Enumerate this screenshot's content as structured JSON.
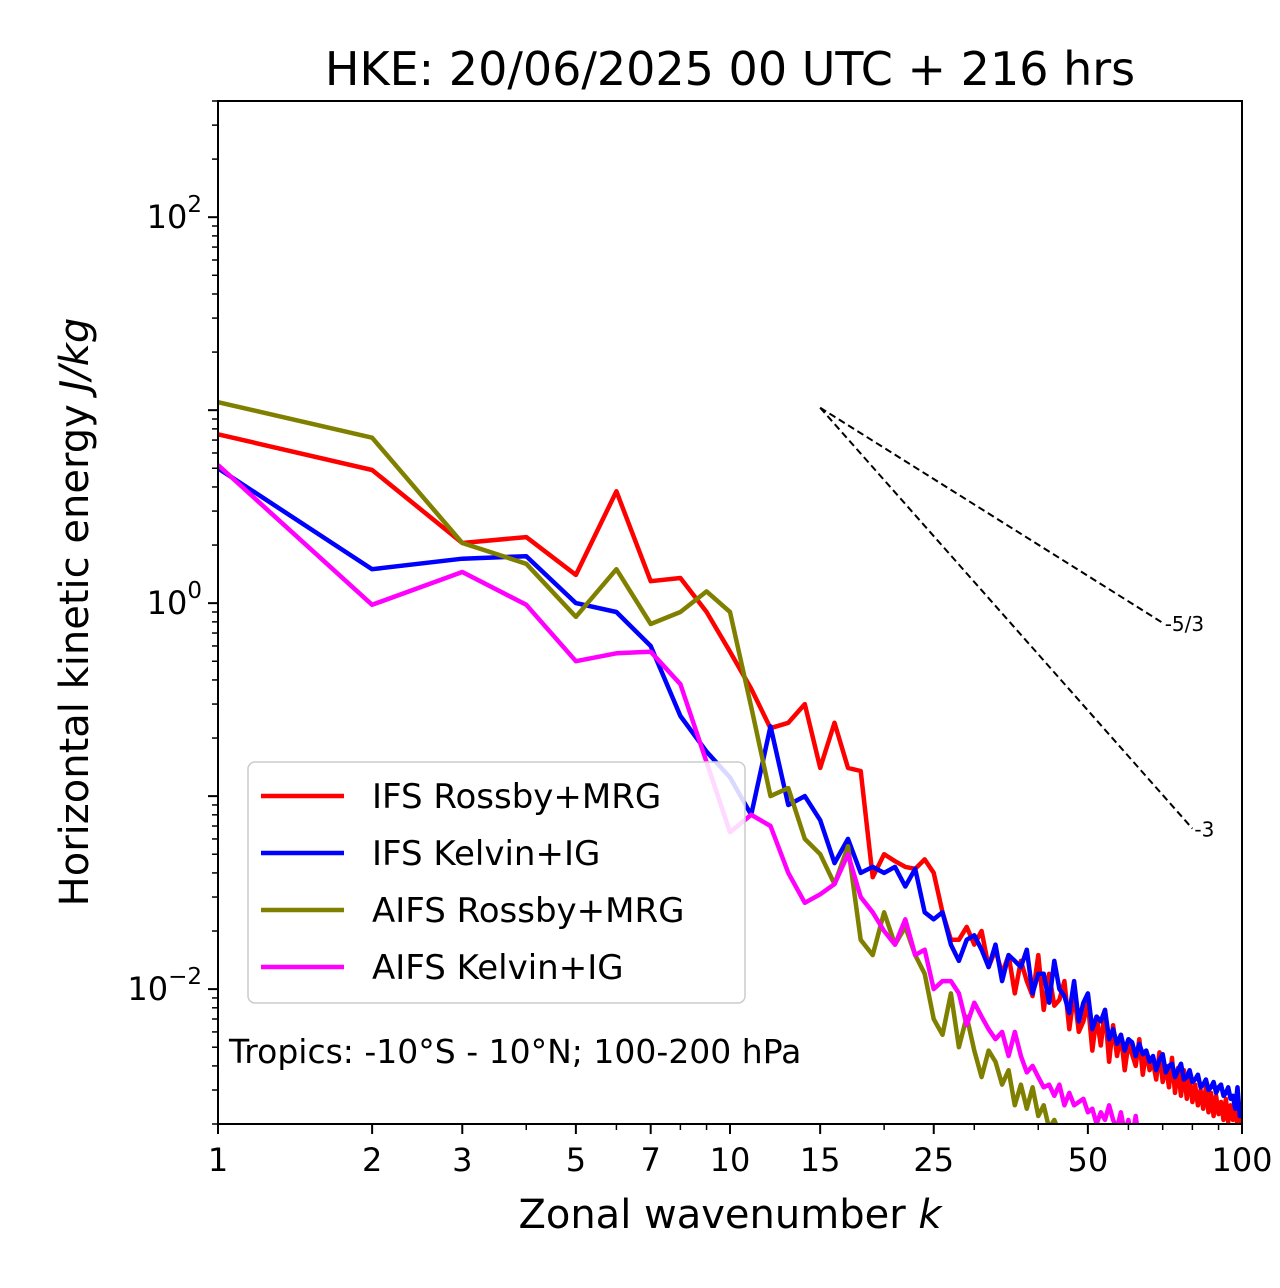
{
  "chart_data": {
    "type": "line",
    "title": "HKE: 20/06/2025 00 UTC + 216 hrs",
    "xlabel": "Zonal wavenumber",
    "xlabel_var": "k",
    "ylabel": "Horizontal kinetic energy",
    "ylabel_units": "J/kg",
    "xscale": "log",
    "yscale": "log",
    "xlim": [
      1,
      100
    ],
    "ylim": [
      0.002,
      400
    ],
    "grid": false,
    "legend_position": "lower-left",
    "x_ticks": [
      {
        "value": 1,
        "label": "1"
      },
      {
        "value": 2,
        "label": "2"
      },
      {
        "value": 3,
        "label": "3"
      },
      {
        "value": 5,
        "label": "5"
      },
      {
        "value": 7,
        "label": "7"
      },
      {
        "value": 10,
        "label": "10"
      },
      {
        "value": 15,
        "label": "15"
      },
      {
        "value": 25,
        "label": "25"
      },
      {
        "value": 50,
        "label": "50"
      },
      {
        "value": 100,
        "label": "100"
      }
    ],
    "y_ticks": [
      {
        "value": 0.01,
        "base": "10",
        "exp": "−2"
      },
      {
        "value": 1,
        "base": "10",
        "exp": "0"
      },
      {
        "value": 100,
        "base": "10",
        "exp": "2"
      }
    ],
    "annotation": "Tropics: -10°S - 10°N; 100-200 hPa",
    "reference_lines": [
      {
        "label": "-5/3",
        "slope": -1.6667,
        "x0": 15,
        "y0": 10.3,
        "x1": 70
      },
      {
        "label": "-3",
        "slope": -3,
        "x0": 15,
        "y0": 10.3,
        "x1": 80
      }
    ],
    "series": [
      {
        "name": "IFS Rossby+MRG",
        "color": "#ff0000",
        "x": [
          1,
          2,
          3,
          4,
          5,
          6,
          7,
          8,
          9,
          10,
          11,
          12,
          13,
          14,
          15,
          16,
          17,
          18,
          19,
          20,
          21,
          22,
          23,
          24,
          25,
          26,
          27,
          28,
          29,
          30,
          31,
          32,
          33,
          34,
          35,
          36,
          37,
          38,
          39,
          40,
          41,
          42,
          43,
          44,
          45,
          46,
          47,
          48,
          49,
          50,
          51,
          52,
          53,
          54,
          55,
          56,
          57,
          58,
          59,
          60,
          61,
          62,
          63,
          64,
          65,
          66,
          67,
          68,
          69,
          70,
          71,
          72,
          73,
          74,
          75,
          76,
          77,
          78,
          79,
          80,
          81,
          82,
          83,
          84,
          85,
          86,
          87,
          88,
          89,
          90,
          91,
          92,
          93,
          94,
          95,
          96,
          97,
          98,
          99,
          100
        ],
        "values": [
          7.5,
          4.9,
          2.05,
          2.2,
          1.4,
          3.8,
          1.3,
          1.35,
          0.9,
          0.56,
          0.36,
          0.225,
          0.24,
          0.3,
          0.14,
          0.24,
          0.14,
          0.135,
          0.038,
          0.05,
          0.046,
          0.043,
          0.042,
          0.047,
          0.04,
          0.025,
          0.018,
          0.018,
          0.021,
          0.017,
          0.02,
          0.013,
          0.016,
          0.012,
          0.015,
          0.0095,
          0.014,
          0.011,
          0.0092,
          0.015,
          0.0078,
          0.012,
          0.0082,
          0.0088,
          0.011,
          0.0062,
          0.0095,
          0.006,
          0.0068,
          0.0085,
          0.0048,
          0.0072,
          0.0051,
          0.0078,
          0.0042,
          0.0065,
          0.0045,
          0.0058,
          0.0038,
          0.0052,
          0.0046,
          0.004,
          0.0055,
          0.0036,
          0.0048,
          0.0038,
          0.0042,
          0.0034,
          0.0047,
          0.0033,
          0.004,
          0.0031,
          0.0044,
          0.0029,
          0.0039,
          0.0028,
          0.0038,
          0.0027,
          0.0034,
          0.0026,
          0.0032,
          0.0025,
          0.003,
          0.0024,
          0.0031,
          0.0023,
          0.0029,
          0.0022,
          0.0028,
          0.00225,
          0.0026,
          0.0021,
          0.0027,
          0.00205,
          0.0025,
          0.0021,
          0.0026,
          0.0019,
          0.0023,
          0.0018
        ]
      },
      {
        "name": "IFS Kelvin+IG",
        "color": "#0000ff",
        "x": [
          1,
          2,
          3,
          4,
          5,
          6,
          7,
          8,
          9,
          10,
          11,
          12,
          13,
          14,
          15,
          16,
          17,
          18,
          19,
          20,
          21,
          22,
          23,
          24,
          25,
          26,
          27,
          28,
          29,
          30,
          31,
          32,
          33,
          34,
          35,
          36,
          37,
          38,
          39,
          40,
          41,
          42,
          43,
          44,
          45,
          46,
          47,
          48,
          49,
          50,
          51,
          52,
          53,
          54,
          55,
          56,
          57,
          58,
          59,
          60,
          61,
          62,
          63,
          64,
          65,
          66,
          67,
          68,
          69,
          70,
          71,
          72,
          73,
          74,
          75,
          76,
          77,
          78,
          79,
          80,
          81,
          82,
          83,
          84,
          85,
          86,
          87,
          88,
          89,
          90,
          91,
          92,
          93,
          94,
          95,
          96,
          97,
          98,
          99,
          100
        ],
        "values": [
          5.0,
          1.5,
          1.7,
          1.75,
          1.0,
          0.9,
          0.6,
          0.26,
          0.17,
          0.125,
          0.08,
          0.23,
          0.09,
          0.1,
          0.075,
          0.045,
          0.06,
          0.04,
          0.043,
          0.04,
          0.043,
          0.034,
          0.042,
          0.025,
          0.023,
          0.025,
          0.017,
          0.014,
          0.018,
          0.019,
          0.016,
          0.013,
          0.017,
          0.011,
          0.015,
          0.014,
          0.013,
          0.016,
          0.0095,
          0.012,
          0.012,
          0.0085,
          0.014,
          0.01,
          0.0092,
          0.0075,
          0.011,
          0.0068,
          0.0085,
          0.0095,
          0.0062,
          0.0072,
          0.0068,
          0.0078,
          0.0055,
          0.0062,
          0.0052,
          0.0058,
          0.0048,
          0.0055,
          0.0053,
          0.0045,
          0.0052,
          0.0046,
          0.0048,
          0.0042,
          0.0045,
          0.0038,
          0.0043,
          0.0046,
          0.0037,
          0.004,
          0.0041,
          0.0035,
          0.0038,
          0.0041,
          0.0034,
          0.0035,
          0.0038,
          0.0033,
          0.0034,
          0.0036,
          0.0031,
          0.0032,
          0.0034,
          0.003,
          0.0031,
          0.0033,
          0.0029,
          0.0031,
          0.0032,
          0.0028,
          0.0029,
          0.0031,
          0.0027,
          0.0028,
          0.0024,
          0.0031,
          0.0022,
          0.0026
        ]
      },
      {
        "name": "AIFS Rossby+MRG",
        "color": "#808000",
        "x": [
          1,
          2,
          3,
          4,
          5,
          6,
          7,
          8,
          9,
          10,
          11,
          12,
          13,
          14,
          15,
          16,
          17,
          18,
          19,
          20,
          21,
          22,
          23,
          24,
          25,
          26,
          27,
          28,
          29,
          30,
          31,
          32,
          33,
          34,
          35,
          36,
          37,
          38,
          39,
          40,
          41,
          42,
          43,
          44,
          45,
          46,
          47
        ],
        "values": [
          11.0,
          7.2,
          2.05,
          1.6,
          0.85,
          1.5,
          0.78,
          0.9,
          1.15,
          0.9,
          0.29,
          0.1,
          0.11,
          0.06,
          0.05,
          0.035,
          0.055,
          0.018,
          0.015,
          0.025,
          0.017,
          0.021,
          0.015,
          0.012,
          0.007,
          0.0058,
          0.0095,
          0.005,
          0.0072,
          0.0048,
          0.0035,
          0.0048,
          0.0042,
          0.0032,
          0.0038,
          0.0025,
          0.0032,
          0.0024,
          0.0031,
          0.0022,
          0.0025,
          0.0019,
          0.0021,
          0.0018,
          0.0016,
          0.0017,
          0.0015
        ]
      },
      {
        "name": "AIFS Kelvin+IG",
        "color": "#ff00ff",
        "x": [
          1,
          2,
          3,
          4,
          5,
          6,
          7,
          8,
          9,
          10,
          11,
          12,
          13,
          14,
          15,
          16,
          17,
          18,
          19,
          20,
          21,
          22,
          23,
          24,
          25,
          26,
          27,
          28,
          29,
          30,
          31,
          32,
          33,
          34,
          35,
          36,
          37,
          38,
          39,
          40,
          41,
          42,
          43,
          44,
          45,
          46,
          47,
          48,
          49,
          50,
          51,
          52,
          53,
          54,
          55,
          56,
          57,
          58,
          59,
          60,
          61,
          62,
          63,
          64,
          65,
          66
        ],
        "values": [
          5.2,
          0.98,
          1.45,
          0.98,
          0.5,
          0.55,
          0.56,
          0.38,
          0.15,
          0.065,
          0.08,
          0.07,
          0.04,
          0.028,
          0.031,
          0.035,
          0.05,
          0.03,
          0.025,
          0.02,
          0.017,
          0.023,
          0.015,
          0.016,
          0.01,
          0.011,
          0.011,
          0.0095,
          0.0065,
          0.0085,
          0.0072,
          0.0062,
          0.0055,
          0.006,
          0.0045,
          0.006,
          0.0045,
          0.0037,
          0.004,
          0.0035,
          0.0031,
          0.0032,
          0.0028,
          0.0032,
          0.0025,
          0.0029,
          0.0025,
          0.0026,
          0.0027,
          0.0023,
          0.0024,
          0.002,
          0.0023,
          0.0021,
          0.0025,
          0.0021,
          0.0019,
          0.0023,
          0.0018,
          0.0021,
          0.0017,
          0.0022,
          0.0016,
          0.0018,
          0.0015,
          0.0017
        ]
      }
    ]
  }
}
